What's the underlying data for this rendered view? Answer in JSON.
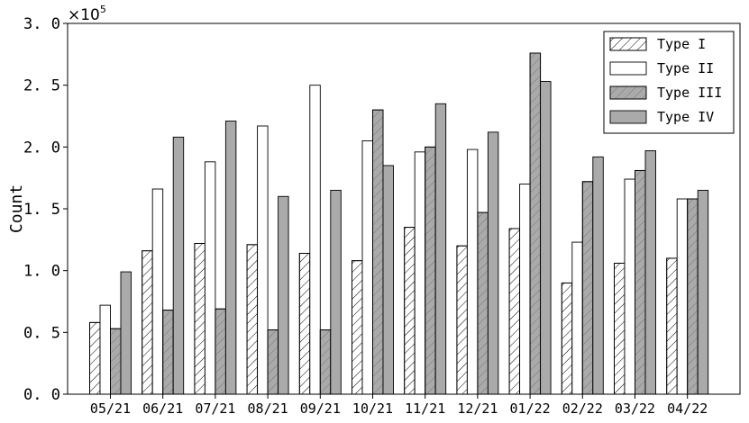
{
  "chart_data": {
    "type": "bar",
    "categories": [
      "05/21",
      "06/21",
      "07/21",
      "08/21",
      "09/21",
      "10/21",
      "11/21",
      "12/21",
      "01/22",
      "02/22",
      "03/22",
      "04/22"
    ],
    "series": [
      {
        "name": "Type I",
        "values": [
          58000,
          116000,
          122000,
          121000,
          114000,
          108000,
          135000,
          120000,
          134000,
          90000,
          106000,
          110000
        ],
        "fill": "#ffffff",
        "hatch": true
      },
      {
        "name": "Type II",
        "values": [
          72000,
          166000,
          188000,
          217000,
          250000,
          205000,
          196000,
          198000,
          170000,
          123000,
          174000,
          158000
        ],
        "fill": "#ffffff",
        "hatch": false
      },
      {
        "name": "Type III",
        "values": [
          53000,
          68000,
          69000,
          52000,
          52000,
          230000,
          200000,
          147000,
          276000,
          172000,
          181000,
          158000
        ],
        "fill": "#aaaaaa",
        "hatch": true
      },
      {
        "name": "Type IV",
        "values": [
          99000,
          208000,
          221000,
          160000,
          165000,
          185000,
          235000,
          212000,
          253000,
          192000,
          197000,
          165000
        ],
        "fill": "#aaaaaa",
        "hatch": false
      }
    ],
    "ylabel": "Count",
    "xlabel": "",
    "ylim": [
      0,
      300000
    ],
    "yticks": [
      "0. 0",
      "0. 5",
      "1. 0",
      "1. 5",
      "2. 0",
      "2. 5",
      "3. 0"
    ],
    "ytick_values": [
      0,
      50000,
      100000,
      150000,
      200000,
      250000,
      300000
    ],
    "y_multiplier": "×10",
    "y_multiplier_exponent": "5",
    "legend_position": "top-right",
    "grid": false
  }
}
